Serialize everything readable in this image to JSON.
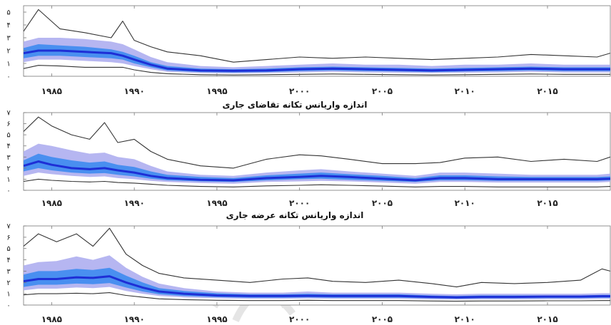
{
  "colors": {
    "band_outer": "#c8c8f5",
    "band_mid": "#a9a9ef",
    "band_inner": "#3d8bf0",
    "median": "#1e2fd6",
    "bound_line": "#333333",
    "axis": "#777777",
    "watermark": "#e3e3e3"
  },
  "chart_data": [
    {
      "type": "area",
      "title": "",
      "xlabel": "",
      "ylabel": "",
      "xlim": [
        1983.3,
        2018.8
      ],
      "ylim": [
        0,
        5.5
      ],
      "grid": false,
      "x_ticks": [
        1985,
        1990,
        1995,
        2000,
        2005,
        2010,
        2015
      ],
      "x_tick_labels": [
        "۱۹۸۵",
        "۱۹۹۰",
        "۱۹۹۵",
        "۲۰۰۰",
        "۲۰۰۵",
        "۲۰۱۰",
        "۲۰۱۵"
      ],
      "y_ticks": [
        0,
        1,
        2,
        3,
        4,
        5
      ],
      "y_tick_labels": [
        "۰",
        "۱",
        "۲",
        "۳",
        "۴",
        "۵"
      ],
      "x": [
        1983.3,
        1984.2,
        1985.5,
        1987.0,
        1988.6,
        1989.3,
        1990.0,
        1991.0,
        1992.0,
        1994.0,
        1996.0,
        1998.0,
        2000.0,
        2002.0,
        2004.0,
        2006.0,
        2008.0,
        2010.0,
        2012.0,
        2014.0,
        2016.0,
        2018.0,
        2018.8
      ],
      "series": [
        {
          "role": "upper_bound",
          "values": [
            3.5,
            5.2,
            3.7,
            3.4,
            3.0,
            4.3,
            2.8,
            2.3,
            1.9,
            1.6,
            1.1,
            1.3,
            1.5,
            1.4,
            1.5,
            1.4,
            1.3,
            1.4,
            1.5,
            1.7,
            1.6,
            1.5,
            1.8
          ]
        },
        {
          "role": "band_90_upper",
          "values": [
            2.7,
            3.0,
            3.0,
            2.9,
            2.7,
            2.5,
            2.1,
            1.5,
            1.1,
            0.8,
            0.7,
            0.8,
            0.9,
            1.0,
            0.9,
            0.9,
            0.8,
            0.9,
            0.9,
            1.0,
            0.9,
            0.9,
            0.9
          ]
        },
        {
          "role": "band_68_upper",
          "values": [
            2.2,
            2.5,
            2.4,
            2.3,
            2.1,
            1.9,
            1.6,
            1.1,
            0.8,
            0.6,
            0.55,
            0.6,
            0.7,
            0.75,
            0.7,
            0.65,
            0.6,
            0.65,
            0.7,
            0.75,
            0.7,
            0.7,
            0.7
          ]
        },
        {
          "role": "median",
          "values": [
            1.8,
            2.0,
            2.0,
            1.9,
            1.8,
            1.6,
            1.3,
            0.9,
            0.6,
            0.45,
            0.42,
            0.45,
            0.55,
            0.6,
            0.55,
            0.5,
            0.45,
            0.5,
            0.55,
            0.6,
            0.55,
            0.55,
            0.55
          ]
        },
        {
          "role": "band_68_lower",
          "values": [
            1.4,
            1.6,
            1.6,
            1.5,
            1.4,
            1.3,
            1.0,
            0.7,
            0.45,
            0.33,
            0.3,
            0.33,
            0.4,
            0.45,
            0.4,
            0.37,
            0.33,
            0.37,
            0.4,
            0.45,
            0.4,
            0.4,
            0.4
          ]
        },
        {
          "role": "band_90_lower",
          "values": [
            1.1,
            1.3,
            1.3,
            1.2,
            1.1,
            1.0,
            0.8,
            0.55,
            0.35,
            0.25,
            0.22,
            0.25,
            0.3,
            0.35,
            0.3,
            0.28,
            0.25,
            0.28,
            0.3,
            0.35,
            0.3,
            0.3,
            0.3
          ]
        },
        {
          "role": "lower_bound",
          "values": [
            0.6,
            0.85,
            0.8,
            0.7,
            0.7,
            0.7,
            0.5,
            0.3,
            0.2,
            0.12,
            0.1,
            0.12,
            0.15,
            0.18,
            0.15,
            0.12,
            0.1,
            0.12,
            0.15,
            0.18,
            0.15,
            0.15,
            0.15
          ]
        }
      ]
    },
    {
      "type": "area",
      "title": "اندازه واریانس تکانه تقاضای جاری",
      "xlabel": "",
      "ylabel": "",
      "xlim": [
        1983.3,
        2018.8
      ],
      "ylim": [
        0,
        7
      ],
      "grid": false,
      "x_ticks": [
        1985,
        1990,
        1995,
        2000,
        2005,
        2010,
        2015
      ],
      "x_tick_labels": [
        "۱۹۸۵",
        "۱۹۹۰",
        "۱۹۹۵",
        "۲۰۰۰",
        "۲۰۰۵",
        "۲۰۱۰",
        "۲۰۱۵"
      ],
      "y_ticks": [
        0,
        1,
        2,
        3,
        4,
        5,
        6,
        7
      ],
      "y_tick_labels": [
        "۰",
        "۱",
        "۲",
        "۳",
        "۴",
        "۵",
        "۶",
        "۷"
      ],
      "x": [
        1983.3,
        1984.2,
        1985.0,
        1986.2,
        1987.3,
        1988.2,
        1989.0,
        1990.0,
        1991.0,
        1992.0,
        1994.0,
        1996.0,
        1998.0,
        2000.0,
        2001.3,
        2003.0,
        2005.0,
        2007.0,
        2008.5,
        2010.0,
        2012.0,
        2014.0,
        2016.0,
        2018.0,
        2018.8
      ],
      "series": [
        {
          "role": "upper_bound",
          "values": [
            5.3,
            6.6,
            5.8,
            5.0,
            4.6,
            6.1,
            4.3,
            4.6,
            3.5,
            2.8,
            2.2,
            2.0,
            2.8,
            3.2,
            3.1,
            2.8,
            2.4,
            2.4,
            2.5,
            2.9,
            3.0,
            2.6,
            2.8,
            2.6,
            3.0
          ]
        },
        {
          "role": "band_90_upper",
          "values": [
            3.5,
            4.2,
            4.0,
            3.6,
            3.3,
            3.4,
            3.0,
            2.8,
            2.2,
            1.7,
            1.4,
            1.3,
            1.6,
            1.8,
            1.9,
            1.7,
            1.5,
            1.3,
            1.6,
            1.6,
            1.5,
            1.4,
            1.4,
            1.4,
            1.5
          ]
        },
        {
          "role": "band_68_upper",
          "values": [
            2.7,
            3.3,
            3.0,
            2.7,
            2.5,
            2.6,
            2.3,
            2.1,
            1.7,
            1.4,
            1.2,
            1.1,
            1.35,
            1.5,
            1.6,
            1.45,
            1.3,
            1.1,
            1.35,
            1.35,
            1.25,
            1.2,
            1.2,
            1.2,
            1.25
          ]
        },
        {
          "role": "median",
          "values": [
            2.2,
            2.6,
            2.3,
            2.0,
            1.9,
            2.0,
            1.8,
            1.6,
            1.3,
            1.1,
            0.95,
            0.9,
            1.1,
            1.2,
            1.3,
            1.2,
            1.05,
            0.9,
            1.1,
            1.1,
            1.0,
            1.0,
            1.0,
            1.0,
            1.05
          ]
        },
        {
          "role": "band_68_lower",
          "values": [
            1.7,
            2.0,
            1.8,
            1.6,
            1.5,
            1.55,
            1.4,
            1.25,
            1.05,
            0.9,
            0.8,
            0.75,
            0.9,
            1.0,
            1.05,
            0.95,
            0.85,
            0.75,
            0.9,
            0.9,
            0.85,
            0.85,
            0.85,
            0.85,
            0.9
          ]
        },
        {
          "role": "band_90_lower",
          "values": [
            1.3,
            1.6,
            1.45,
            1.3,
            1.2,
            1.25,
            1.1,
            1.0,
            0.85,
            0.75,
            0.65,
            0.6,
            0.75,
            0.8,
            0.85,
            0.8,
            0.7,
            0.6,
            0.75,
            0.75,
            0.7,
            0.7,
            0.7,
            0.7,
            0.75
          ]
        },
        {
          "role": "lower_bound",
          "values": [
            0.8,
            1.0,
            0.9,
            0.8,
            0.75,
            0.8,
            0.7,
            0.65,
            0.55,
            0.45,
            0.35,
            0.3,
            0.4,
            0.45,
            0.5,
            0.45,
            0.38,
            0.3,
            0.35,
            0.35,
            0.3,
            0.3,
            0.3,
            0.3,
            0.35
          ]
        }
      ]
    },
    {
      "type": "area",
      "title": "اندازه واریانس تکانه عرضه جاری",
      "xlabel": "",
      "ylabel": "",
      "xlim": [
        1983.3,
        2018.8
      ],
      "ylim": [
        0,
        7
      ],
      "grid": false,
      "x_ticks": [
        1985,
        1990,
        1995,
        2000,
        2005,
        2010,
        2015
      ],
      "x_tick_labels": [
        "۱۹۸۵",
        "۱۹۹۰",
        "۱۹۹۵",
        "۲۰۰۰",
        "۲۰۰۵",
        "۲۰۱۰",
        "۲۰۱۵"
      ],
      "y_ticks": [
        0,
        1,
        2,
        3,
        4,
        5,
        6,
        7
      ],
      "y_tick_labels": [
        "۰",
        "۱",
        "۲",
        "۳",
        "۴",
        "۵",
        "۶",
        "۷"
      ],
      "x": [
        1983.3,
        1984.2,
        1985.3,
        1986.5,
        1987.5,
        1988.5,
        1989.5,
        1990.5,
        1991.5,
        1993.0,
        1995.0,
        1997.0,
        1999.0,
        2000.5,
        2002.0,
        2004.0,
        2006.0,
        2008.0,
        2009.5,
        2011.0,
        2013.0,
        2015.0,
        2017.0,
        2018.3,
        2018.8
      ],
      "series": [
        {
          "role": "upper_bound",
          "values": [
            5.2,
            6.3,
            5.6,
            6.3,
            5.2,
            6.8,
            4.5,
            3.5,
            2.8,
            2.4,
            2.2,
            2.0,
            2.3,
            2.4,
            2.1,
            2.0,
            2.2,
            1.9,
            1.6,
            2.0,
            1.9,
            2.0,
            2.2,
            3.2,
            3.0
          ]
        },
        {
          "role": "band_90_upper",
          "values": [
            3.5,
            3.8,
            3.9,
            4.3,
            4.0,
            4.4,
            3.3,
            2.5,
            1.9,
            1.5,
            1.2,
            1.1,
            1.1,
            1.2,
            1.1,
            1.1,
            1.1,
            1.0,
            0.95,
            1.0,
            1.0,
            1.0,
            1.0,
            1.05,
            1.05
          ]
        },
        {
          "role": "band_68_upper",
          "values": [
            2.7,
            3.0,
            3.0,
            3.2,
            3.1,
            3.3,
            2.6,
            2.0,
            1.5,
            1.25,
            1.05,
            0.95,
            0.95,
            1.0,
            0.95,
            0.95,
            0.95,
            0.85,
            0.8,
            0.85,
            0.85,
            0.85,
            0.85,
            0.9,
            0.9
          ]
        },
        {
          "role": "median",
          "values": [
            2.1,
            2.3,
            2.3,
            2.45,
            2.4,
            2.55,
            2.0,
            1.55,
            1.2,
            1.0,
            0.85,
            0.8,
            0.8,
            0.82,
            0.8,
            0.8,
            0.8,
            0.72,
            0.68,
            0.72,
            0.72,
            0.75,
            0.75,
            0.78,
            0.78
          ]
        },
        {
          "role": "band_68_lower",
          "values": [
            1.6,
            1.8,
            1.8,
            1.9,
            1.85,
            1.95,
            1.55,
            1.2,
            0.95,
            0.8,
            0.7,
            0.65,
            0.65,
            0.68,
            0.65,
            0.65,
            0.65,
            0.6,
            0.56,
            0.6,
            0.6,
            0.62,
            0.62,
            0.65,
            0.65
          ]
        },
        {
          "role": "band_90_lower",
          "values": [
            1.3,
            1.45,
            1.45,
            1.55,
            1.5,
            1.6,
            1.25,
            1.0,
            0.8,
            0.68,
            0.6,
            0.56,
            0.56,
            0.58,
            0.56,
            0.56,
            0.56,
            0.5,
            0.48,
            0.5,
            0.5,
            0.52,
            0.52,
            0.55,
            0.55
          ]
        },
        {
          "role": "lower_bound",
          "values": [
            0.9,
            1.0,
            1.0,
            1.05,
            1.0,
            1.1,
            0.85,
            0.7,
            0.55,
            0.48,
            0.42,
            0.4,
            0.4,
            0.42,
            0.4,
            0.4,
            0.4,
            0.36,
            0.34,
            0.36,
            0.36,
            0.38,
            0.38,
            0.4,
            0.4
          ]
        }
      ]
    }
  ]
}
